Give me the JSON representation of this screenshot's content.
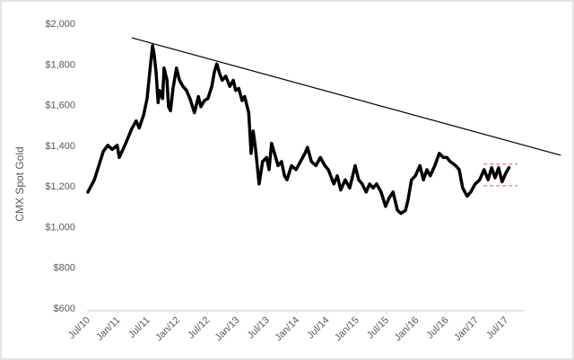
{
  "chart_data": {
    "type": "line",
    "title": "",
    "xlabel": "",
    "ylabel": "CMX Spot Gold",
    "x_units": "months since Jul/10",
    "xlim": [
      0,
      87.6
    ],
    "ylim": [
      600,
      2000
    ],
    "y_ticks": [
      600,
      800,
      1000,
      1200,
      1400,
      1600,
      1800,
      2000
    ],
    "y_tick_labels": [
      "$600",
      "$800",
      "$1,000",
      "$1,200",
      "$1,400",
      "$1,600",
      "$1,800",
      "$2,000"
    ],
    "x_ticks": [
      0,
      6,
      12,
      18,
      24,
      30,
      36,
      42,
      48,
      54,
      60,
      66,
      72,
      78,
      84
    ],
    "x_tick_labels": [
      "Jul/10",
      "Jan/11",
      "Jul/11",
      "Jan/12",
      "Jul/12",
      "Jan/13",
      "Jul/13",
      "Jan/14",
      "Jul/14",
      "Jan/15",
      "Jul/15",
      "Jan/16",
      "Jul/16",
      "Jan/17",
      "Jul/17"
    ],
    "grid": false,
    "legend": "none",
    "series": [
      {
        "name": "CMX Spot Gold",
        "color": "#000000",
        "x": [
          0,
          1.3,
          2.2,
          3.1,
          4,
          4.9,
          5.9,
          6.3,
          7.6,
          8.8,
          9.7,
          10.3,
          11.2,
          11.9,
          12.6,
          13,
          13.3,
          13.7,
          14.1,
          14.4,
          15,
          15.3,
          15.9,
          16.2,
          16.6,
          17.1,
          17.8,
          18.4,
          19.1,
          19.8,
          20.5,
          21.4,
          22.2,
          22.7,
          23.4,
          24.1,
          24.9,
          25.4,
          25.9,
          26.5,
          27,
          27.7,
          28.5,
          29.2,
          29.7,
          30.3,
          31,
          31.5,
          32.3,
          32.8,
          33.2,
          33.7,
          34.4,
          35.1,
          35.9,
          36.4,
          36.9,
          37.5,
          38.2,
          38.9,
          39.5,
          40,
          40.9,
          41.8,
          42.7,
          43.6,
          44.1,
          44.9,
          45.8,
          46.7,
          47.6,
          48.3,
          49.4,
          50.1,
          50.8,
          51.7,
          52.6,
          53.7,
          54.4,
          55.1,
          55.9,
          56.6,
          57.3,
          58,
          58.9,
          59.8,
          60.5,
          61.3,
          62.2,
          62.9,
          63.8,
          64.3,
          65,
          65.8,
          66.7,
          67.4,
          68.1,
          68.8,
          69.7,
          70.6,
          71.4,
          72.1,
          72.8,
          73.9,
          74.6,
          75.3,
          76.2,
          76.9,
          77.8,
          78.7,
          79.6,
          80.4,
          81.1,
          81.8,
          82.5,
          83.2,
          83.9,
          84.6
        ],
        "y": [
          1170,
          1230,
          1300,
          1370,
          1400,
          1380,
          1400,
          1340,
          1410,
          1480,
          1520,
          1485,
          1550,
          1630,
          1800,
          1890,
          1850,
          1760,
          1610,
          1670,
          1630,
          1780,
          1720,
          1590,
          1570,
          1680,
          1780,
          1720,
          1690,
          1670,
          1630,
          1560,
          1640,
          1590,
          1620,
          1630,
          1690,
          1760,
          1800,
          1750,
          1720,
          1740,
          1690,
          1720,
          1670,
          1680,
          1620,
          1640,
          1560,
          1360,
          1470,
          1380,
          1210,
          1320,
          1340,
          1280,
          1410,
          1360,
          1300,
          1320,
          1250,
          1230,
          1300,
          1280,
          1320,
          1360,
          1390,
          1320,
          1300,
          1340,
          1300,
          1280,
          1210,
          1250,
          1180,
          1230,
          1190,
          1300,
          1230,
          1210,
          1170,
          1210,
          1190,
          1210,
          1170,
          1100,
          1140,
          1170,
          1080,
          1065,
          1080,
          1130,
          1230,
          1250,
          1300,
          1230,
          1280,
          1250,
          1300,
          1360,
          1340,
          1340,
          1320,
          1300,
          1280,
          1190,
          1150,
          1170,
          1210,
          1230,
          1280,
          1230,
          1290,
          1240,
          1290,
          1220,
          1260,
          1290
        ]
      }
    ],
    "annotations": [
      {
        "type": "trendline",
        "color": "#000000",
        "x": [
          8.8,
          95
        ],
        "y": [
          1929,
          1351
        ]
      },
      {
        "type": "dashed-line",
        "color": "#e05050",
        "x": [
          79.5,
          86.3
        ],
        "y": [
          1307,
          1307
        ]
      },
      {
        "type": "dashed-line",
        "color": "#e05050",
        "x": [
          79.5,
          86.3
        ],
        "y": [
          1201,
          1201
        ]
      }
    ]
  }
}
